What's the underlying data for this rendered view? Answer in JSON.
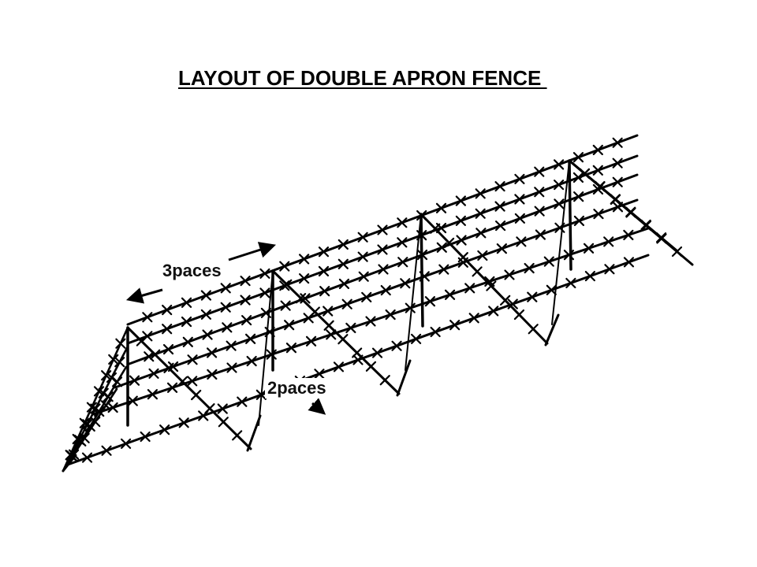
{
  "title": "LAYOUT OF DOUBLE APRON FENCE ",
  "labels": {
    "three_paces": "3paces",
    "two_paces": "2paces"
  },
  "colors": {
    "background": "#ffffff",
    "ink": "#000000"
  }
}
